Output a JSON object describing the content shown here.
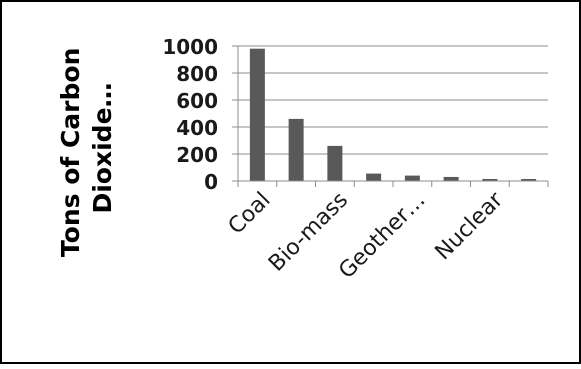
{
  "chart_data": {
    "type": "bar",
    "categories": [
      "Coal",
      "",
      "Bio-mass",
      "",
      "Geother…",
      "",
      "Nuclear",
      ""
    ],
    "values": [
      980,
      460,
      260,
      55,
      40,
      30,
      15,
      15
    ],
    "title": "",
    "xlabel": "",
    "ylabel": "Tons of Carbon Dioxide…",
    "ylabel_lines": [
      "Tons of Carbon",
      "Dioxide…"
    ],
    "ylim": [
      0,
      1000
    ],
    "yticks": [
      0,
      200,
      400,
      600,
      800,
      1000
    ],
    "grid": true,
    "legend": "none",
    "bar_color": "#595959",
    "grid_color": "#8c8c8c",
    "axis_color": "#8c8c8c",
    "text_color": "#1a1a1a"
  }
}
